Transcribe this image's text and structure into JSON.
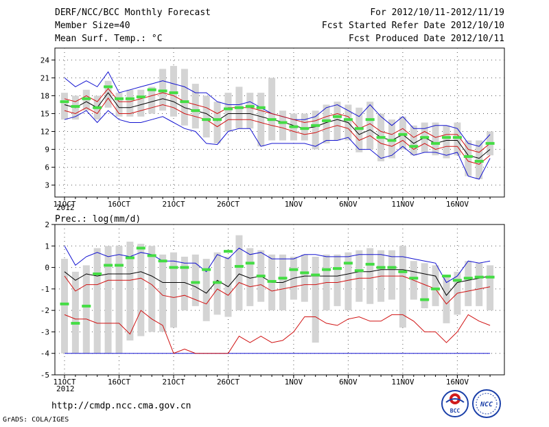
{
  "header": {
    "title": "DERF/NCC/BCC Monthly Forecast",
    "member_size": "Member Size=40",
    "variable": "Mean Surf. Temp.: °C",
    "forecast_period": "For 2012/10/11-2012/11/19",
    "fcst_started": "Fcst Started Refer Date 2012/10/10",
    "fcst_produced": "Fcst Produced Date 2012/10/11"
  },
  "footer": {
    "url": "http://cmdp.ncc.cma.gov.cn",
    "grads": "GrADS: COLA/IGES",
    "logo_bcc": "BCC",
    "logo_ncc": "NCC"
  },
  "colors": {
    "max_min": "#1010d0",
    "percentile": "#d01010",
    "ensemble_mean": "#000000",
    "member_box": "#d4d4d4",
    "obs_marker": "#44dd44"
  },
  "chart_data": [
    {
      "type": "box-line",
      "title": "Mean Surf. Temp.: °C",
      "x_ticks": [
        "11OCT",
        "16OCT",
        "21OCT",
        "26OCT",
        "1NOV",
        "6NOV",
        "11NOV",
        "16NOV"
      ],
      "x_tick_days": [
        1,
        6,
        11,
        16,
        22,
        27,
        32,
        37
      ],
      "x_year": "2012",
      "days": 40,
      "ylim": [
        1,
        26
      ],
      "yticks": [
        3,
        6,
        9,
        12,
        15,
        18,
        21,
        24
      ],
      "series": {
        "mean": [
          16.5,
          16.0,
          17.0,
          16.0,
          18.5,
          16.0,
          16.0,
          16.5,
          17.0,
          17.5,
          17.0,
          16.0,
          15.5,
          15.0,
          13.8,
          15.0,
          15.0,
          15.0,
          14.5,
          14.0,
          13.6,
          13.0,
          12.5,
          12.8,
          13.5,
          14.0,
          13.5,
          11.5,
          12.3,
          11.0,
          10.5,
          11.5,
          10.0,
          11.0,
          10.0,
          10.5,
          10.5,
          8.0,
          7.5,
          9.0
        ],
        "upper_pct": [
          17.5,
          17.0,
          18.0,
          17.0,
          19.2,
          17.0,
          17.0,
          17.5,
          18.0,
          18.5,
          18.0,
          17.0,
          16.5,
          16.0,
          15.0,
          16.0,
          16.0,
          16.0,
          15.5,
          15.0,
          14.5,
          14.0,
          13.5,
          13.8,
          14.5,
          15.0,
          14.5,
          12.5,
          13.3,
          12.0,
          11.5,
          12.5,
          11.0,
          12.0,
          11.0,
          11.5,
          11.5,
          9.0,
          8.5,
          10.0
        ],
        "lower_pct": [
          15.5,
          15.0,
          16.0,
          15.0,
          17.6,
          15.0,
          15.0,
          15.5,
          16.0,
          16.5,
          16.0,
          15.0,
          14.5,
          14.0,
          12.8,
          14.0,
          14.0,
          14.0,
          13.5,
          13.0,
          12.6,
          12.0,
          11.5,
          11.8,
          12.5,
          13.0,
          12.5,
          10.5,
          11.3,
          10.0,
          9.5,
          10.5,
          9.0,
          10.0,
          9.0,
          9.5,
          9.5,
          7.0,
          6.5,
          8.0
        ],
        "max": [
          21.0,
          19.5,
          20.5,
          19.5,
          22.0,
          18.5,
          19.0,
          19.5,
          20.0,
          20.5,
          20.0,
          19.5,
          18.5,
          18.5,
          17.0,
          16.5,
          16.5,
          17.0,
          16.0,
          15.0,
          14.5,
          14.0,
          14.0,
          14.5,
          16.0,
          16.5,
          15.5,
          14.5,
          16.5,
          14.5,
          13.0,
          14.5,
          12.5,
          12.5,
          13.0,
          13.0,
          12.5,
          10.0,
          9.5,
          11.5
        ],
        "min": [
          14.0,
          14.5,
          15.5,
          13.5,
          15.5,
          14.0,
          13.5,
          13.5,
          14.0,
          14.5,
          13.5,
          12.5,
          12.0,
          10.0,
          9.8,
          12.0,
          12.5,
          12.5,
          9.5,
          10.0,
          10.0,
          10.0,
          10.0,
          9.5,
          10.5,
          10.5,
          11.0,
          9.0,
          9.0,
          7.5,
          8.0,
          9.5,
          8.0,
          8.5,
          8.5,
          8.0,
          8.5,
          4.5,
          4.0,
          7.5
        ],
        "box_top": [
          18.5,
          18.0,
          19.0,
          18.0,
          20.5,
          18.5,
          19.0,
          19.0,
          19.5,
          22.5,
          23.0,
          22.5,
          20.0,
          18.0,
          17.0,
          18.5,
          19.5,
          18.5,
          18.5,
          21.0,
          15.5,
          15.0,
          15.0,
          15.5,
          16.5,
          17.0,
          16.5,
          16.0,
          17.0,
          15.0,
          14.0,
          14.5,
          13.0,
          13.5,
          13.5,
          13.0,
          13.5,
          10.5,
          10.5,
          12.0
        ],
        "box_bottom": [
          14.0,
          14.0,
          15.5,
          14.0,
          16.0,
          14.5,
          14.5,
          14.5,
          15.0,
          15.5,
          14.5,
          13.0,
          12.5,
          11.0,
          10.0,
          12.0,
          12.5,
          12.5,
          9.5,
          10.5,
          10.5,
          10.5,
          10.5,
          9.0,
          10.0,
          10.5,
          10.5,
          8.5,
          9.0,
          7.0,
          7.5,
          9.0,
          8.0,
          8.5,
          8.0,
          7.5,
          8.0,
          4.5,
          4.0,
          8.0
        ],
        "observed": [
          17.0,
          16.2,
          17.5,
          16.0,
          19.5,
          17.5,
          17.5,
          17.8,
          19.0,
          18.8,
          18.5,
          17.0,
          15.5,
          14.0,
          14.0,
          15.8,
          16.0,
          16.2,
          16.0,
          14.0,
          13.5,
          12.8,
          12.5,
          13.0,
          13.8,
          14.5,
          14.0,
          12.5,
          14.0,
          11.0,
          10.5,
          11.5,
          9.5,
          11.0,
          10.0,
          11.0,
          11.0,
          7.8,
          7.0,
          10.0
        ]
      }
    },
    {
      "type": "box-line",
      "title": "Prec.: log(mm/d)",
      "x_ticks": [
        "11OCT",
        "16OCT",
        "21OCT",
        "26OCT",
        "1NOV",
        "6NOV",
        "11NOV",
        "16NOV"
      ],
      "x_tick_days": [
        1,
        6,
        11,
        16,
        22,
        27,
        32,
        37
      ],
      "x_year": "2012",
      "days": 40,
      "ylim": [
        -5,
        2
      ],
      "yticks": [
        -5,
        -4,
        -3,
        -2,
        -1,
        0,
        1,
        2
      ],
      "series": {
        "mean": [
          -0.2,
          -0.6,
          -0.3,
          -0.4,
          -0.3,
          -0.3,
          -0.3,
          -0.2,
          -0.4,
          -0.7,
          -0.7,
          -0.7,
          -0.9,
          -1.2,
          -0.6,
          -0.9,
          -0.3,
          -0.5,
          -0.4,
          -0.7,
          -0.7,
          -0.5,
          -0.4,
          -0.4,
          -0.4,
          -0.4,
          -0.3,
          -0.2,
          -0.2,
          -0.1,
          -0.1,
          -0.1,
          -0.2,
          -0.3,
          -0.4,
          -1.3,
          -0.7,
          -0.6,
          -0.5,
          -0.4
        ],
        "upper_pct": [
          -0.4,
          -1.1,
          -0.8,
          -0.8,
          -0.6,
          -0.6,
          -0.6,
          -0.5,
          -0.8,
          -1.3,
          -1.4,
          -1.3,
          -1.5,
          -1.7,
          -1.0,
          -1.3,
          -0.7,
          -0.9,
          -0.8,
          -1.1,
          -1.0,
          -0.9,
          -0.8,
          -0.8,
          -0.7,
          -0.7,
          -0.6,
          -0.5,
          -0.5,
          -0.4,
          -0.4,
          -0.4,
          -0.6,
          -0.8,
          -1.0,
          -1.7,
          -1.2,
          -1.1,
          -1.0,
          -0.9
        ],
        "lower_pct": [
          -2.2,
          -2.4,
          -2.4,
          -2.6,
          -2.6,
          -2.6,
          -3.1,
          -2.0,
          -2.4,
          -2.7,
          -4.0,
          -3.8,
          -4.0,
          -4.0,
          -4.0,
          -4.0,
          -3.2,
          -3.5,
          -3.2,
          -3.5,
          -3.4,
          -3.0,
          -2.3,
          -2.3,
          -2.6,
          -2.7,
          -2.4,
          -2.3,
          -2.5,
          -2.5,
          -2.2,
          -2.2,
          -2.5,
          -3.0,
          -3.0,
          -3.5,
          -3.0,
          -2.2,
          -2.5,
          -2.7
        ],
        "max": [
          1.0,
          0.1,
          0.5,
          0.7,
          0.5,
          0.6,
          0.5,
          0.7,
          0.6,
          0.3,
          0.3,
          0.2,
          0.2,
          -0.2,
          0.6,
          0.4,
          0.9,
          0.6,
          0.7,
          0.4,
          0.4,
          0.4,
          0.6,
          0.6,
          0.5,
          0.5,
          0.5,
          0.6,
          0.6,
          0.6,
          0.5,
          0.5,
          0.4,
          0.3,
          0.2,
          -0.7,
          -0.4,
          0.3,
          0.2,
          0.3
        ],
        "min": [
          -4.0,
          -4.0,
          -4.0,
          -4.0,
          -4.0,
          -4.0,
          -4.0,
          -4.0,
          -4.0,
          -4.0,
          -4.0,
          -4.0,
          -4.0,
          -4.0,
          -4.0,
          -4.0,
          -4.0,
          -4.0,
          -4.0,
          -4.0,
          -4.0,
          -4.0,
          -4.0,
          -4.0,
          -4.0,
          -4.0,
          -4.0,
          -4.0,
          -4.0,
          -4.0,
          -4.0,
          -4.0,
          -4.0,
          -4.0,
          -4.0,
          -4.0,
          -4.0,
          -4.0,
          -4.0,
          -4.0
        ],
        "box_top": [
          0.4,
          -0.2,
          0.1,
          0.9,
          1.0,
          1.0,
          1.2,
          1.1,
          1.0,
          0.6,
          0.7,
          0.5,
          0.6,
          0.4,
          0.7,
          0.5,
          1.5,
          0.9,
          0.8,
          0.6,
          0.6,
          0.5,
          0.6,
          0.5,
          0.6,
          0.6,
          0.7,
          0.8,
          0.9,
          0.8,
          0.8,
          1.0,
          0.3,
          0.2,
          0.1,
          -0.4,
          -0.2,
          0.3,
          0.2,
          0.1
        ],
        "box_bottom": [
          -4.0,
          -4.0,
          -4.0,
          -4.0,
          -4.0,
          -4.0,
          -3.4,
          -3.2,
          -3.0,
          -3.0,
          -2.8,
          -2.0,
          -1.8,
          -2.5,
          -2.2,
          -2.3,
          -2.0,
          -1.8,
          -1.6,
          -2.0,
          -2.0,
          -1.5,
          -1.6,
          -3.5,
          -2.0,
          -1.8,
          -2.0,
          -1.6,
          -1.7,
          -1.6,
          -1.5,
          -2.8,
          -1.5,
          -1.9,
          -1.8,
          -2.6,
          -2.2,
          -1.8,
          -1.8,
          -2.0
        ],
        "observed": [
          -1.7,
          -2.6,
          -1.8,
          -0.3,
          0.1,
          0.1,
          0.45,
          0.9,
          0.55,
          0.3,
          0.0,
          0.0,
          -0.7,
          -0.1,
          -0.7,
          0.75,
          0.05,
          0.2,
          -0.4,
          -0.65,
          -0.5,
          -0.1,
          -0.25,
          -0.35,
          -0.1,
          -0.05,
          0.2,
          -0.15,
          0.15,
          0.0,
          0.0,
          -0.2,
          -0.5,
          -1.5,
          -1.0,
          -0.4,
          -0.6,
          -0.5,
          -0.45,
          -0.45
        ]
      },
      "ylabel_note": ""
    }
  ]
}
